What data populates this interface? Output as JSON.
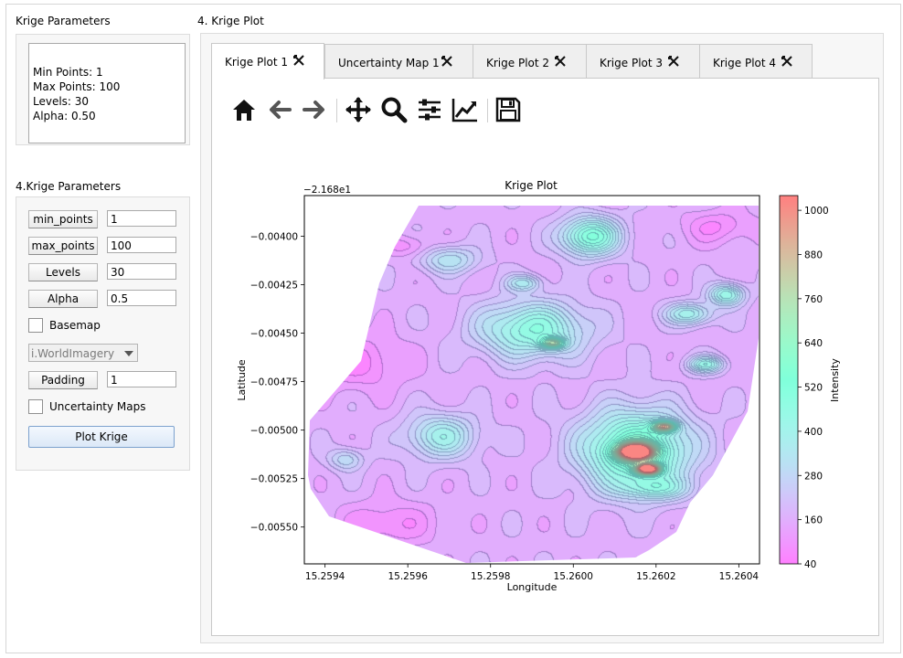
{
  "left_group1": {
    "title": "Krige Parameters",
    "lines": [
      "Min Points: 1",
      "Max Points: 100",
      "Levels: 30",
      "Alpha: 0.50"
    ]
  },
  "left_group2": {
    "title": "4.Krige Parameters",
    "min_points": {
      "label": "min_points",
      "value": "1"
    },
    "max_points": {
      "label": "max_points",
      "value": "100"
    },
    "levels": {
      "label": "Levels",
      "value": "30"
    },
    "alpha": {
      "label": "Alpha",
      "value": "0.5"
    },
    "basemap": {
      "label": "Basemap",
      "checked": false
    },
    "basemap_source": "i.WorldImagery",
    "padding": {
      "label": "Padding",
      "value": "1"
    },
    "uncertainty": {
      "label": "Uncertainty Maps",
      "checked": false
    },
    "plot_button": "Plot Krige"
  },
  "right_group": {
    "title": "4. Krige Plot",
    "tabs": [
      {
        "label": "Krige Plot 1",
        "active": true
      },
      {
        "label": "Uncertainty Map 1",
        "active": false
      },
      {
        "label": "Krige Plot 2",
        "active": false
      },
      {
        "label": "Krige Plot 3",
        "active": false
      },
      {
        "label": "Krige Plot 4",
        "active": false
      }
    ],
    "toolbar_icons": [
      "home-icon",
      "back-arrow-icon",
      "forward-arrow-icon",
      "pan-icon",
      "zoom-icon",
      "configure-subplots-icon",
      "edit-axis-icon",
      "save-icon"
    ]
  },
  "chart_data": {
    "type": "heatmap",
    "title": "Krige Plot",
    "xlabel": "Longitude",
    "ylabel": "Latitude",
    "y_offset_label": "−2.168e1",
    "xlim": [
      15.25935,
      15.26045
    ],
    "ylim": [
      -0.00569,
      -0.00379
    ],
    "x_ticks": [
      "15.2594",
      "15.2596",
      "15.2598",
      "15.2600",
      "15.2602",
      "15.2604"
    ],
    "x_tick_values": [
      15.2594,
      15.2596,
      15.2598,
      15.26,
      15.2602,
      15.2604
    ],
    "y_ticks": [
      "−0.00400",
      "−0.00425",
      "−0.00450",
      "−0.00475",
      "−0.00500",
      "−0.00525",
      "−0.00550"
    ],
    "y_tick_values": [
      -0.004,
      -0.00425,
      -0.0045,
      -0.00475,
      -0.005,
      -0.00525,
      -0.0055
    ],
    "colorbar": {
      "label": "Intensity",
      "min": 40,
      "max": 1040,
      "ticks": [
        "40",
        "160",
        "280",
        "400",
        "520",
        "640",
        "760",
        "880",
        "1000"
      ],
      "tick_values": [
        40,
        160,
        280,
        400,
        520,
        640,
        760,
        880,
        1000
      ]
    },
    "colormap": "rainbow",
    "alpha": 0.5,
    "levels": 30,
    "background_level": 160,
    "hotspots": [
      {
        "x": 15.26015,
        "y": -0.0051,
        "value": 600,
        "sx": 9e-05,
        "sy": 0.00014
      },
      {
        "x": 15.26015,
        "y": -0.00511,
        "value": 1000,
        "sx": 3e-05,
        "sy": 3e-05
      },
      {
        "x": 15.26018,
        "y": -0.0052,
        "value": 980,
        "sx": 2e-05,
        "sy": 2e-05
      },
      {
        "x": 15.26022,
        "y": -0.00498,
        "value": 700,
        "sx": 2e-05,
        "sy": 2e-05
      },
      {
        "x": 15.2599,
        "y": -0.00448,
        "value": 470,
        "sx": 9e-05,
        "sy": 0.0001
      },
      {
        "x": 15.25995,
        "y": -0.00455,
        "value": 560,
        "sx": 2e-05,
        "sy": 2e-05
      },
      {
        "x": 15.26004,
        "y": -0.004,
        "value": 520,
        "sx": 5e-05,
        "sy": 7e-05
      },
      {
        "x": 15.25968,
        "y": -0.00503,
        "value": 390,
        "sx": 6e-05,
        "sy": 8e-05
      },
      {
        "x": 15.26028,
        "y": -0.0044,
        "value": 400,
        "sx": 4e-05,
        "sy": 4e-05
      },
      {
        "x": 15.26037,
        "y": -0.0043,
        "value": 440,
        "sx": 3e-05,
        "sy": 4e-05
      },
      {
        "x": 15.2597,
        "y": -0.00412,
        "value": 330,
        "sx": 5e-05,
        "sy": 5e-05
      },
      {
        "x": 15.26032,
        "y": -0.00466,
        "value": 420,
        "sx": 3e-05,
        "sy": 3e-05
      },
      {
        "x": 15.25945,
        "y": -0.00515,
        "value": 300,
        "sx": 3e-05,
        "sy": 4e-05
      },
      {
        "x": 15.25988,
        "y": -0.00424,
        "value": 340,
        "sx": 3e-05,
        "sy": 3e-05
      },
      {
        "x": 15.2602,
        "y": -0.0053,
        "value": 330,
        "sx": 6e-05,
        "sy": 4e-05
      }
    ],
    "lows": [
      {
        "x": 15.25948,
        "y": -0.00465,
        "value": 60,
        "sx": 8e-05,
        "sy": 0.0001
      },
      {
        "x": 15.25955,
        "y": -0.00548,
        "value": 70,
        "sx": 8e-05,
        "sy": 8e-05
      },
      {
        "x": 15.26035,
        "y": -0.00395,
        "value": 70,
        "sx": 6e-05,
        "sy": 6e-05
      },
      {
        "x": 15.2596,
        "y": -0.00405,
        "value": 80,
        "sx": 4e-05,
        "sy": 4e-05
      },
      {
        "x": 15.2604,
        "y": -0.0054,
        "value": 90,
        "sx": 6e-05,
        "sy": 8e-05
      }
    ]
  }
}
